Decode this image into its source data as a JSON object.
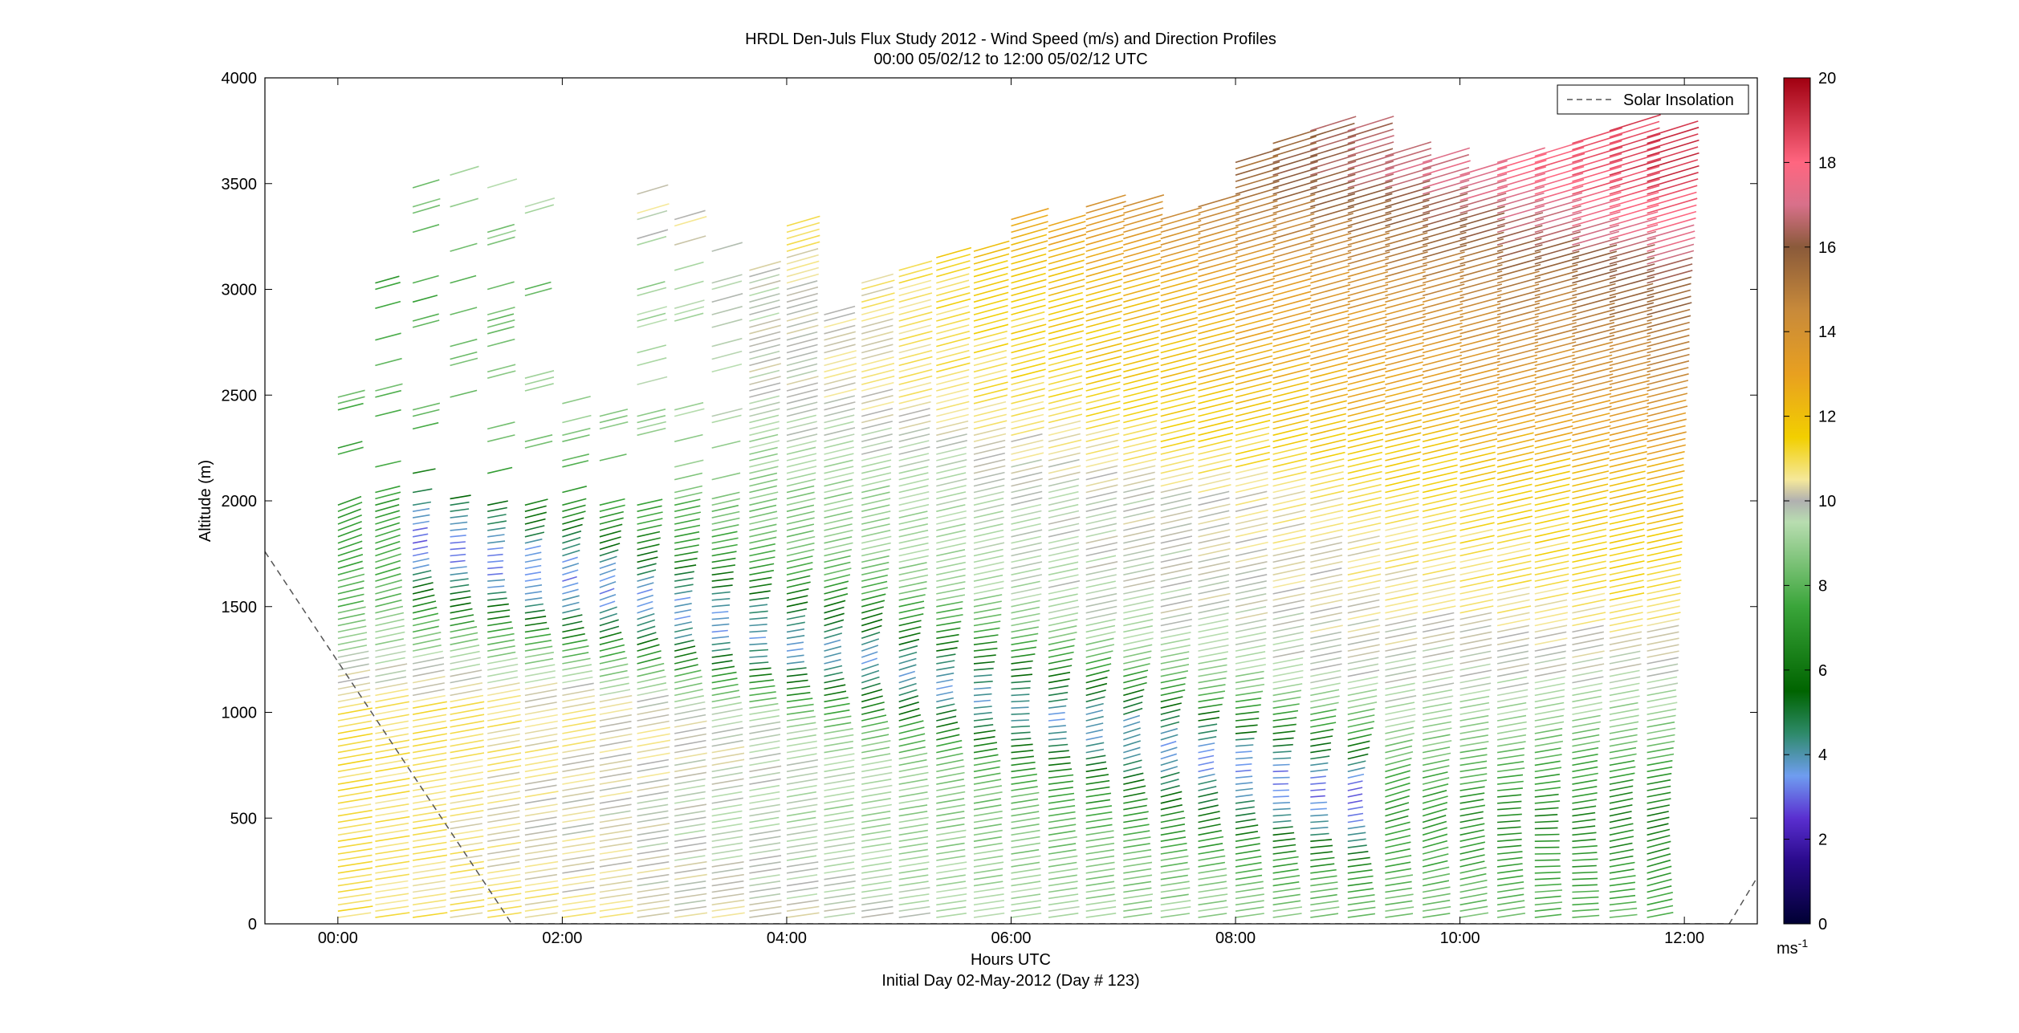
{
  "chart_data": {
    "type": "wind-barb-profile",
    "title_line1": "HRDL Den-Juls Flux Study 2012 - Wind Speed (m/s) and Direction Profiles",
    "title_line2": "00:00 05/02/12 to 12:00 05/02/12  UTC",
    "xlabel": "Hours UTC",
    "xlabel2": "Initial Day 02-May-2012 (Day # 123)",
    "ylabel": "Altitude (m)",
    "x_unit": "hours",
    "xlim": [
      -0.65,
      12.65
    ],
    "ylim": [
      0,
      4000
    ],
    "x_ticks": [
      0,
      2,
      4,
      6,
      8,
      10,
      12
    ],
    "x_tick_labels": [
      "00:00",
      "02:00",
      "04:00",
      "06:00",
      "08:00",
      "10:00",
      "12:00"
    ],
    "y_ticks": [
      0,
      500,
      1000,
      1500,
      2000,
      2500,
      3000,
      3500,
      4000
    ],
    "y_tick_labels": [
      "0",
      "500",
      "1000",
      "1500",
      "2000",
      "2500",
      "3000",
      "3500",
      "4000"
    ],
    "legend": {
      "entries": [
        "Solar Insolation"
      ],
      "placement": "top-right",
      "line_style": "dashed",
      "color": "#555555"
    },
    "colorbar": {
      "min": 0,
      "max": 20,
      "ticks": [
        0,
        2,
        4,
        6,
        8,
        10,
        12,
        14,
        16,
        18,
        20
      ],
      "tick_labels": [
        "0",
        "2",
        "4",
        "6",
        "8",
        "10",
        "12",
        "14",
        "16",
        "18",
        "20"
      ],
      "unit_label": "ms",
      "unit_exponent": "-1",
      "stops": [
        {
          "v": 0,
          "c": "#000033"
        },
        {
          "v": 1.5,
          "c": "#2a0a8c"
        },
        {
          "v": 2.5,
          "c": "#5a2fd0"
        },
        {
          "v": 3.5,
          "c": "#6f9df0"
        },
        {
          "v": 4.5,
          "c": "#2e8a6a"
        },
        {
          "v": 5.5,
          "c": "#006400"
        },
        {
          "v": 7.5,
          "c": "#3aa53a"
        },
        {
          "v": 9.5,
          "c": "#b8ddb0"
        },
        {
          "v": 10,
          "c": "#b0b0b0"
        },
        {
          "v": 10.5,
          "c": "#f5e89a"
        },
        {
          "v": 11.5,
          "c": "#f2cf00"
        },
        {
          "v": 13,
          "c": "#e8a020"
        },
        {
          "v": 14.5,
          "c": "#c88a3a"
        },
        {
          "v": 16,
          "c": "#8a5a3a"
        },
        {
          "v": 17,
          "c": "#d8708a"
        },
        {
          "v": 18,
          "c": "#ff6680"
        },
        {
          "v": 20,
          "c": "#a00010"
        }
      ]
    },
    "solar_insolation_line": [
      [
        -0.65,
        1760
      ],
      [
        1.55,
        0
      ],
      [
        12.4,
        0
      ],
      [
        12.65,
        220
      ]
    ],
    "profile_times": [
      0.0,
      0.333,
      0.667,
      1.0,
      1.333,
      1.667,
      2.0,
      2.333,
      2.667,
      3.0,
      3.333,
      3.667,
      4.0,
      4.333,
      4.667,
      5.0,
      5.333,
      5.667,
      6.0,
      6.333,
      6.667,
      7.0,
      7.333,
      7.667,
      8.0,
      8.333,
      8.667,
      9.0,
      9.333,
      9.667,
      10.0,
      10.333,
      10.667,
      11.0,
      11.333,
      11.667
    ],
    "profile_top_altitudes": [
      2500,
      3200,
      3700,
      3750,
      3600,
      3650,
      2500,
      2400,
      3450,
      3350,
      3200,
      3100,
      3300,
      2900,
      3050,
      3100,
      3150,
      3200,
      3350,
      3300,
      3400,
      3400,
      3350,
      3400,
      3600,
      3700,
      3750,
      3750,
      3650,
      3600,
      3550,
      3600,
      3650,
      3700,
      3760,
      3720
    ],
    "speed_profile_by_altitude_m": [
      {
        "altitude": 0,
        "early_speed": 11,
        "late_speed": 8
      },
      {
        "altitude": 500,
        "early_speed": 11,
        "late_speed": 6
      },
      {
        "altitude": 1000,
        "early_speed": 11,
        "late_speed": 9
      },
      {
        "altitude": 1500,
        "early_speed": 8,
        "late_speed": 11
      },
      {
        "altitude": 2000,
        "early_speed": 7,
        "late_speed": 12
      },
      {
        "altitude": 2500,
        "early_speed": 8,
        "late_speed": 14
      },
      {
        "altitude": 3000,
        "early_speed": 7,
        "late_speed": 16
      },
      {
        "altitude": 3500,
        "early_speed": 8,
        "late_speed": 19
      }
    ]
  }
}
